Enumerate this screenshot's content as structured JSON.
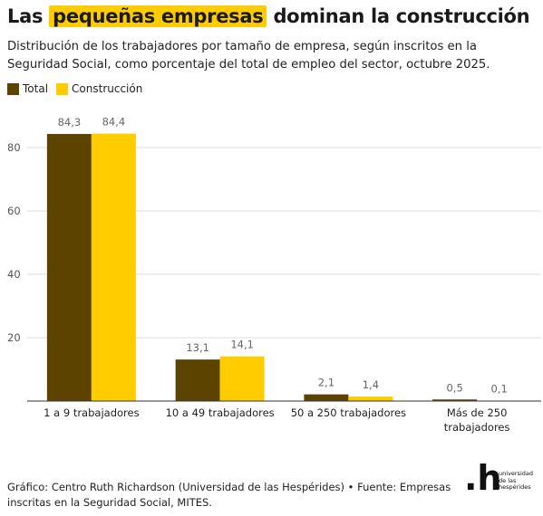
{
  "header": {
    "title_pre": "Las",
    "title_highlight": "pequeñas empresas",
    "title_post": "dominan la construcción",
    "subtitle": "Distribución de los trabajadores por tamaño de empresa, según inscritos en la Seguridad Social, como porcentaje del total de empleo del sector, octubre 2025."
  },
  "legend": [
    {
      "label": "Total",
      "color": "#5c4400"
    },
    {
      "label": "Construcción",
      "color": "#ffcc00"
    }
  ],
  "chart_data": {
    "type": "bar",
    "categories": [
      "1 a 9 trabajadores",
      "10 a 49 trabajadores",
      "50 a 250 trabajadores",
      "Más de 250 trabajadores"
    ],
    "series": [
      {
        "name": "Total",
        "values": [
          84.3,
          13.1,
          2.1,
          0.5
        ],
        "labels": [
          "84,3",
          "13,1",
          "2,1",
          "0,5"
        ],
        "color": "#5c4400"
      },
      {
        "name": "Construcción",
        "values": [
          84.4,
          14.1,
          1.4,
          0.1
        ],
        "labels": [
          "84,4",
          "14,1",
          "1,4",
          "0,1"
        ],
        "color": "#ffcc00"
      }
    ],
    "yticks": [
      20,
      40,
      60,
      80
    ],
    "ylim": [
      0,
      95
    ],
    "grid": true,
    "legend_position": "top-left"
  },
  "footer": {
    "credit": "Gráfico: Centro Ruth Richardson (Universidad de las Hespérides) • Fuente: Empresas inscritas en la Seguridad Social, MITES."
  },
  "logo": {
    "mark": ".h",
    "line1": "universidad",
    "line2": "de las",
    "line3": "hespérides"
  }
}
